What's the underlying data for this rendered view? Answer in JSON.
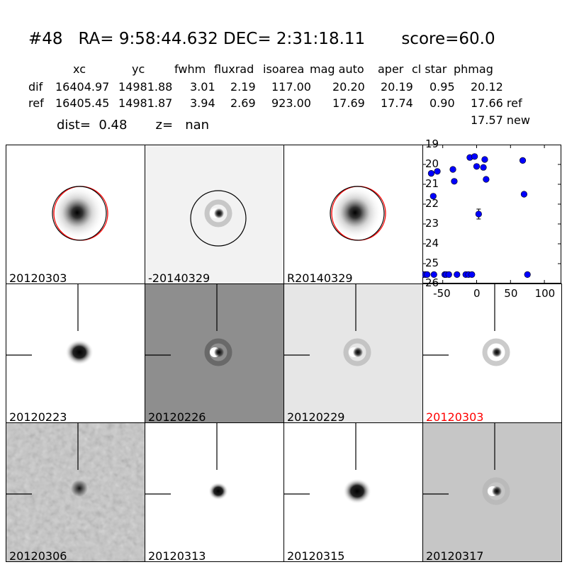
{
  "header": {
    "title": "#48   RA= 9:58:44.632 DEC= 2:31:18.11       score=60.0",
    "columns": [
      "xc",
      "yc",
      "fwhm",
      "fluxrad",
      "isoarea",
      "mag auto",
      "aper",
      "cl star",
      "phmag"
    ],
    "rows": [
      {
        "label": "dif",
        "values": [
          "16404.97",
          "14981.88",
          "3.01",
          "2.19",
          "117.00",
          "20.20",
          "20.19",
          "0.95",
          "20.12"
        ]
      },
      {
        "label": "ref",
        "values": [
          "16405.45",
          "14981.87",
          "3.94",
          "2.69",
          "923.00",
          "17.69",
          "17.74",
          "0.90",
          "17.66 ref"
        ]
      }
    ],
    "extra": "17.57 new",
    "dist_line": "dist=  0.48       z=   nan"
  },
  "panels": [
    {
      "label": "20120303",
      "style": "ref",
      "circle": "double"
    },
    {
      "label": "-20140329",
      "style": "dipole",
      "circle": "black"
    },
    {
      "label": "R20140329",
      "style": "ref",
      "circle": "double"
    },
    {
      "label": "20120223",
      "style": "blob",
      "crosshair": true
    },
    {
      "label": "20120226",
      "style": "dipole-gray",
      "crosshair": true
    },
    {
      "label": "20120229",
      "style": "dipole-light",
      "crosshair": true
    },
    {
      "label": "20120303",
      "style": "dipole-white",
      "crosshair": true,
      "highlight": true
    },
    {
      "label": "20120306",
      "style": "noise",
      "crosshair": true
    },
    {
      "label": "20120313",
      "style": "blob-small",
      "crosshair": true
    },
    {
      "label": "20120315",
      "style": "blob",
      "crosshair": true
    },
    {
      "label": "20120317",
      "style": "dipole-mid",
      "crosshair": true
    }
  ],
  "colors": {
    "marker": "#0000ff",
    "highlight": "#ff0000",
    "ring": "#ff0000"
  },
  "chart_data": {
    "type": "scatter",
    "xlim": [
      -80,
      125
    ],
    "ylim": [
      26,
      19
    ],
    "xticks": [
      "-50",
      "0",
      "50",
      "100"
    ],
    "xtick_values": [
      -50,
      0,
      50,
      100
    ],
    "yticks": [
      "19",
      "20",
      "21",
      "22",
      "23",
      "24",
      "25",
      "26"
    ],
    "ytick_values": [
      19,
      20,
      21,
      22,
      23,
      24,
      25,
      26
    ],
    "series": [
      {
        "points": [
          {
            "x": -78,
            "y": 25.55
          },
          {
            "x": -75,
            "y": 25.55
          },
          {
            "x": -73,
            "y": 25.55
          },
          {
            "x": -67,
            "y": 20.45
          },
          {
            "x": -64,
            "y": 21.6
          },
          {
            "x": -63,
            "y": 25.55
          },
          {
            "x": -58,
            "y": 20.35
          },
          {
            "x": -47,
            "y": 25.55
          },
          {
            "x": -45,
            "y": 25.55
          },
          {
            "x": -41,
            "y": 25.55
          },
          {
            "x": -35,
            "y": 20.25
          },
          {
            "x": -33,
            "y": 20.85
          },
          {
            "x": -29,
            "y": 25.55
          },
          {
            "x": -16,
            "y": 25.55
          },
          {
            "x": -12,
            "y": 25.55
          },
          {
            "x": -10,
            "y": 19.65
          },
          {
            "x": -7,
            "y": 25.55
          },
          {
            "x": -3,
            "y": 19.6
          },
          {
            "x": 0,
            "y": 20.1
          },
          {
            "x": 3,
            "y": 22.5,
            "err": 0.25
          },
          {
            "x": 10,
            "y": 20.15
          },
          {
            "x": 12,
            "y": 19.75
          },
          {
            "x": 14,
            "y": 20.75
          },
          {
            "x": 68,
            "y": 19.8
          },
          {
            "x": 70,
            "y": 21.5
          },
          {
            "x": 75,
            "y": 25.55
          }
        ]
      }
    ]
  }
}
